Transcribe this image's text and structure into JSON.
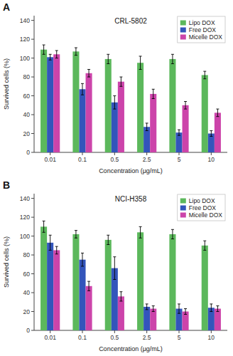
{
  "chart_data": [
    {
      "type": "bar",
      "title": "CRL-5802",
      "annotations": [
        "A"
      ],
      "xlabel": "Concentration (μg/mL)",
      "ylabel": "Survived cells (%)",
      "categories": [
        "0.01",
        "0.1",
        "0.5",
        "2.5",
        "5",
        "10"
      ],
      "series": [
        {
          "name": "Lipo DOX",
          "color": "#5cb85c",
          "values": [
            109,
            107,
            99,
            95,
            99,
            82
          ],
          "errors": [
            5,
            4,
            5,
            7,
            5,
            4
          ]
        },
        {
          "name": "Free DOX",
          "color": "#3355bb",
          "values": [
            101,
            67,
            53,
            27,
            21,
            20
          ],
          "errors": [
            3,
            6,
            7,
            4,
            3,
            3
          ]
        },
        {
          "name": "Micelle DOX",
          "color": "#cc44aa",
          "values": [
            104,
            84,
            75,
            62,
            50,
            42
          ],
          "errors": [
            4,
            4,
            5,
            5,
            4,
            4
          ]
        }
      ],
      "ylim": [
        0,
        145
      ],
      "yticks": [
        0,
        20,
        40,
        60,
        80,
        100,
        120,
        140
      ],
      "legend": "upper right",
      "grid": false
    },
    {
      "type": "bar",
      "title": "NCI-H358",
      "annotations": [
        "B"
      ],
      "xlabel": "Concentration (μg/mL)",
      "ylabel": "Survived cells (%)",
      "categories": [
        "0.01",
        "0.1",
        "0.5",
        "2.5",
        "5",
        "10"
      ],
      "series": [
        {
          "name": "Lipo DOX",
          "color": "#5cb85c",
          "values": [
            110,
            102,
            96,
            104,
            102,
            90
          ],
          "errors": [
            6,
            4,
            5,
            6,
            5,
            5
          ]
        },
        {
          "name": "Free DOX",
          "color": "#3355bb",
          "values": [
            93,
            75,
            66,
            25,
            23,
            24
          ],
          "errors": [
            8,
            7,
            12,
            3,
            5,
            4
          ]
        },
        {
          "name": "Micelle DOX",
          "color": "#cc44aa",
          "values": [
            85,
            47,
            36,
            23,
            20,
            23
          ],
          "errors": [
            4,
            5,
            5,
            3,
            3,
            3
          ]
        }
      ],
      "ylim": [
        0,
        145
      ],
      "yticks": [
        0,
        20,
        40,
        60,
        80,
        100,
        120,
        140
      ],
      "legend": "upper right",
      "grid": false
    }
  ]
}
